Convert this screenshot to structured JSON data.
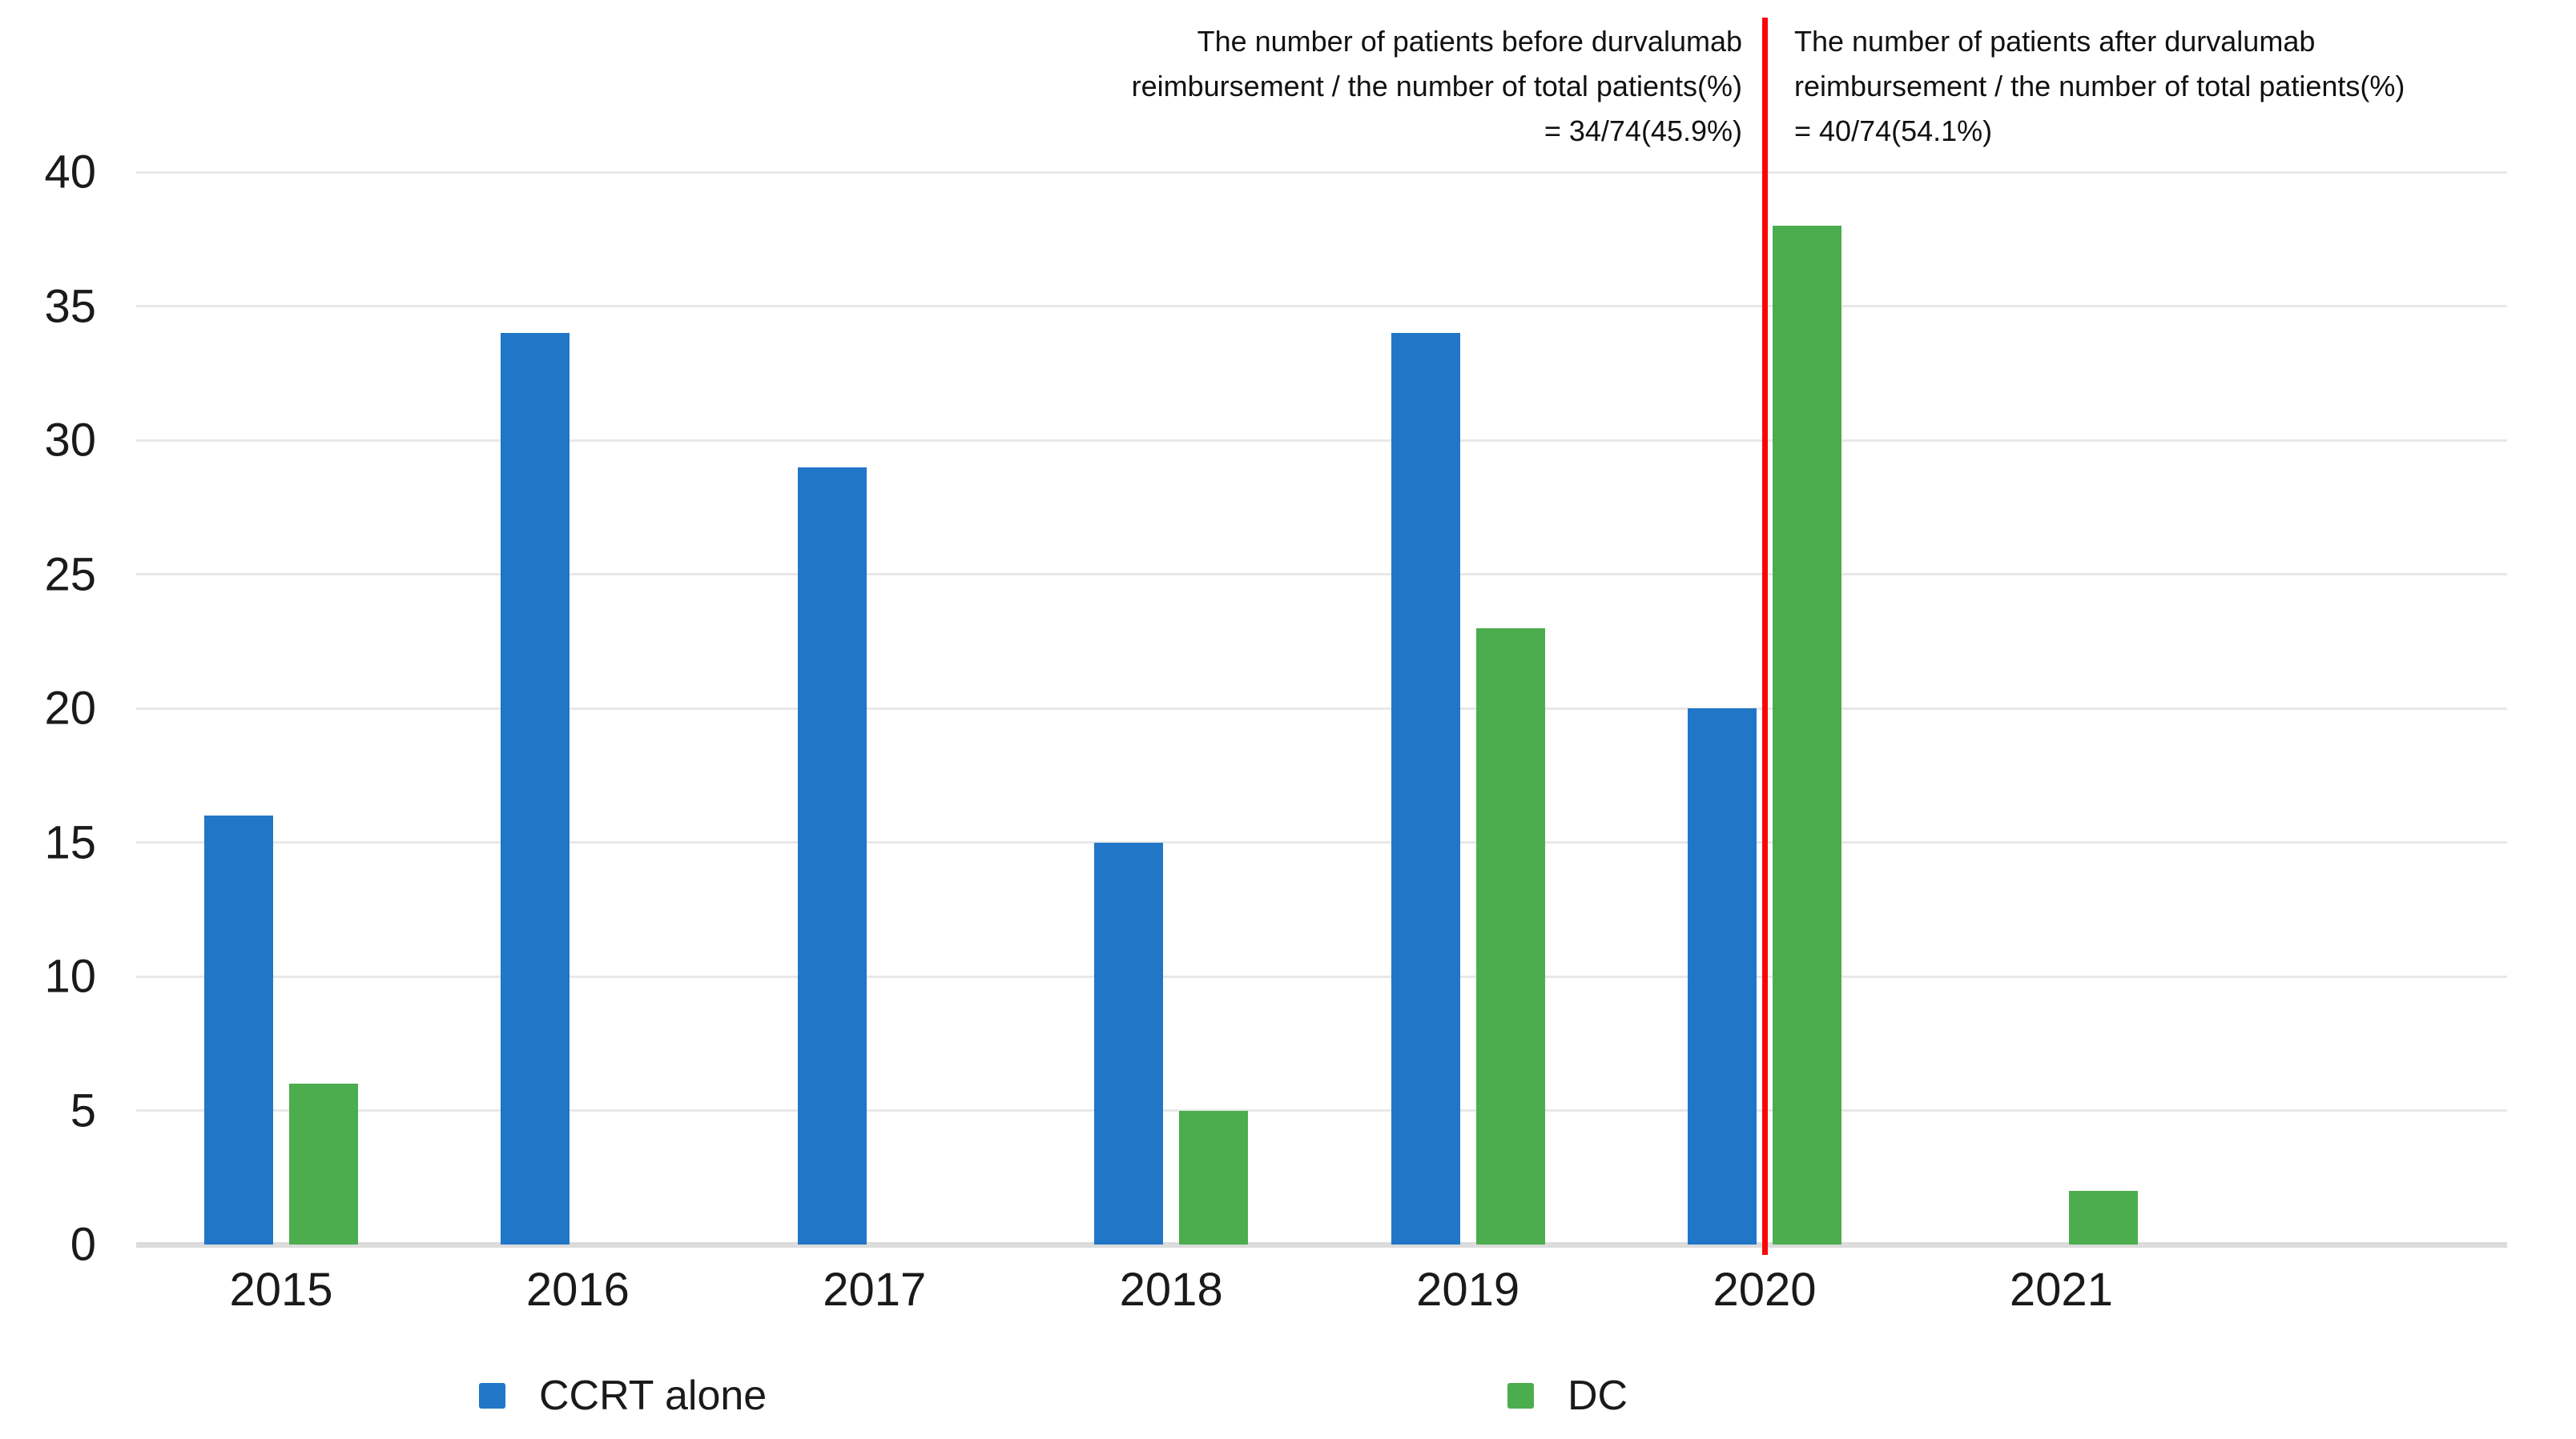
{
  "chart_data": {
    "type": "bar",
    "title": "",
    "xlabel": "",
    "ylabel": "",
    "categories": [
      "2015",
      "2016",
      "2017",
      "2018",
      "2019",
      "2020",
      "2021"
    ],
    "series": [
      {
        "name": "CCRT alone",
        "color": "#2176c7",
        "values": [
          16,
          34,
          29,
          15,
          34,
          20,
          0
        ]
      },
      {
        "name": "DC",
        "color": "#4cad4f",
        "values": [
          6,
          0,
          0,
          5,
          23,
          38,
          2
        ]
      }
    ],
    "ylim": [
      0,
      40
    ],
    "ytick_step": 5,
    "yticks": [
      "0",
      "5",
      "10",
      "15",
      "20",
      "25",
      "30",
      "35",
      "40"
    ],
    "grid": true,
    "legend_position": "bottom",
    "divider": {
      "color": "#fb0606",
      "at_category": "2020",
      "description": "vertical red line between the 2020 CCRT-alone and DC bars marking start of durvalumab reimbursement"
    },
    "annotations": {
      "before": {
        "align": "right",
        "lines": [
          "The number of patients before durvalumab",
          "reimbursement / the number of total patients(%)",
          "= 34/74(45.9%)"
        ]
      },
      "after": {
        "align": "left",
        "lines": [
          "The number of patients after durvalumab",
          "reimbursement / the number of total patients(%)",
          "= 40/74(54.1%)"
        ]
      }
    }
  },
  "legend": {
    "items": [
      {
        "label": "CCRT alone",
        "color": "#2176c7"
      },
      {
        "label": "DC",
        "color": "#4cad4f"
      }
    ]
  }
}
